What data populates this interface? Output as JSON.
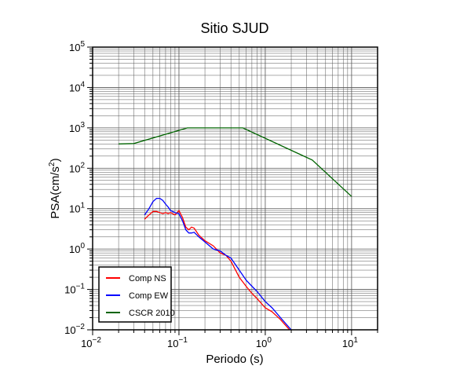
{
  "chart_data": {
    "type": "line",
    "title": "Sitio SJUD",
    "xlabel": "Periodo (s)",
    "ylabel": "PSA(cm/s2)",
    "x_scale": "log",
    "y_scale": "log",
    "xlim": [
      0.01,
      20
    ],
    "ylim": [
      0.01,
      100000
    ],
    "x_ticks": [
      {
        "base": "10",
        "exp": "−2",
        "value": 0.01
      },
      {
        "base": "10",
        "exp": "−1",
        "value": 0.1
      },
      {
        "base": "10",
        "exp": "0",
        "value": 1
      },
      {
        "base": "10",
        "exp": "1",
        "value": 10
      }
    ],
    "y_ticks": [
      {
        "base": "10",
        "exp": "−2",
        "value": 0.01
      },
      {
        "base": "10",
        "exp": "−1",
        "value": 0.1
      },
      {
        "base": "10",
        "exp": "0",
        "value": 1
      },
      {
        "base": "10",
        "exp": "1",
        "value": 10
      },
      {
        "base": "10",
        "exp": "2",
        "value": 100
      },
      {
        "base": "10",
        "exp": "3",
        "value": 1000
      },
      {
        "base": "10",
        "exp": "4",
        "value": 10000
      },
      {
        "base": "10",
        "exp": "5",
        "value": 100000
      }
    ],
    "grid": true,
    "legend_position": "bottom-left",
    "series": [
      {
        "name": "Comp NS",
        "color": "#ff0000",
        "x": [
          0.04,
          0.045,
          0.05,
          0.055,
          0.06,
          0.065,
          0.07,
          0.075,
          0.08,
          0.09,
          0.1,
          0.11,
          0.12,
          0.13,
          0.14,
          0.15,
          0.17,
          0.2,
          0.25,
          0.3,
          0.35,
          0.4,
          0.5,
          0.6,
          0.7,
          0.8,
          1.0,
          1.2,
          1.5,
          2.0
        ],
        "y": [
          5.5,
          7.0,
          8.5,
          8.5,
          8.0,
          7.5,
          8.0,
          7.5,
          8.0,
          7.0,
          9.0,
          6.0,
          3.5,
          3.0,
          3.5,
          3.3,
          2.2,
          1.6,
          1.2,
          0.8,
          0.7,
          0.5,
          0.2,
          0.12,
          0.08,
          0.06,
          0.035,
          0.028,
          0.018,
          0.009
        ]
      },
      {
        "name": "Comp EW",
        "color": "#0000ff",
        "x": [
          0.04,
          0.045,
          0.05,
          0.055,
          0.06,
          0.065,
          0.07,
          0.075,
          0.08,
          0.09,
          0.1,
          0.11,
          0.12,
          0.13,
          0.14,
          0.15,
          0.17,
          0.2,
          0.25,
          0.3,
          0.35,
          0.4,
          0.5,
          0.6,
          0.7,
          0.8,
          1.0,
          1.2,
          1.5,
          2.0
        ],
        "y": [
          7.0,
          10.0,
          15.0,
          18.0,
          18.0,
          16.0,
          13.0,
          11.0,
          9.0,
          8.0,
          7.5,
          5.0,
          3.0,
          2.5,
          2.5,
          2.6,
          2.0,
          1.5,
          1.0,
          0.9,
          0.7,
          0.6,
          0.3,
          0.17,
          0.12,
          0.09,
          0.05,
          0.035,
          0.02,
          0.01
        ]
      },
      {
        "name": "CSCR 2010",
        "color": "#006400",
        "x": [
          0.02,
          0.03,
          0.125,
          0.55,
          3.5,
          10
        ],
        "y": [
          400,
          410,
          1000,
          1000,
          160,
          20
        ]
      }
    ]
  }
}
